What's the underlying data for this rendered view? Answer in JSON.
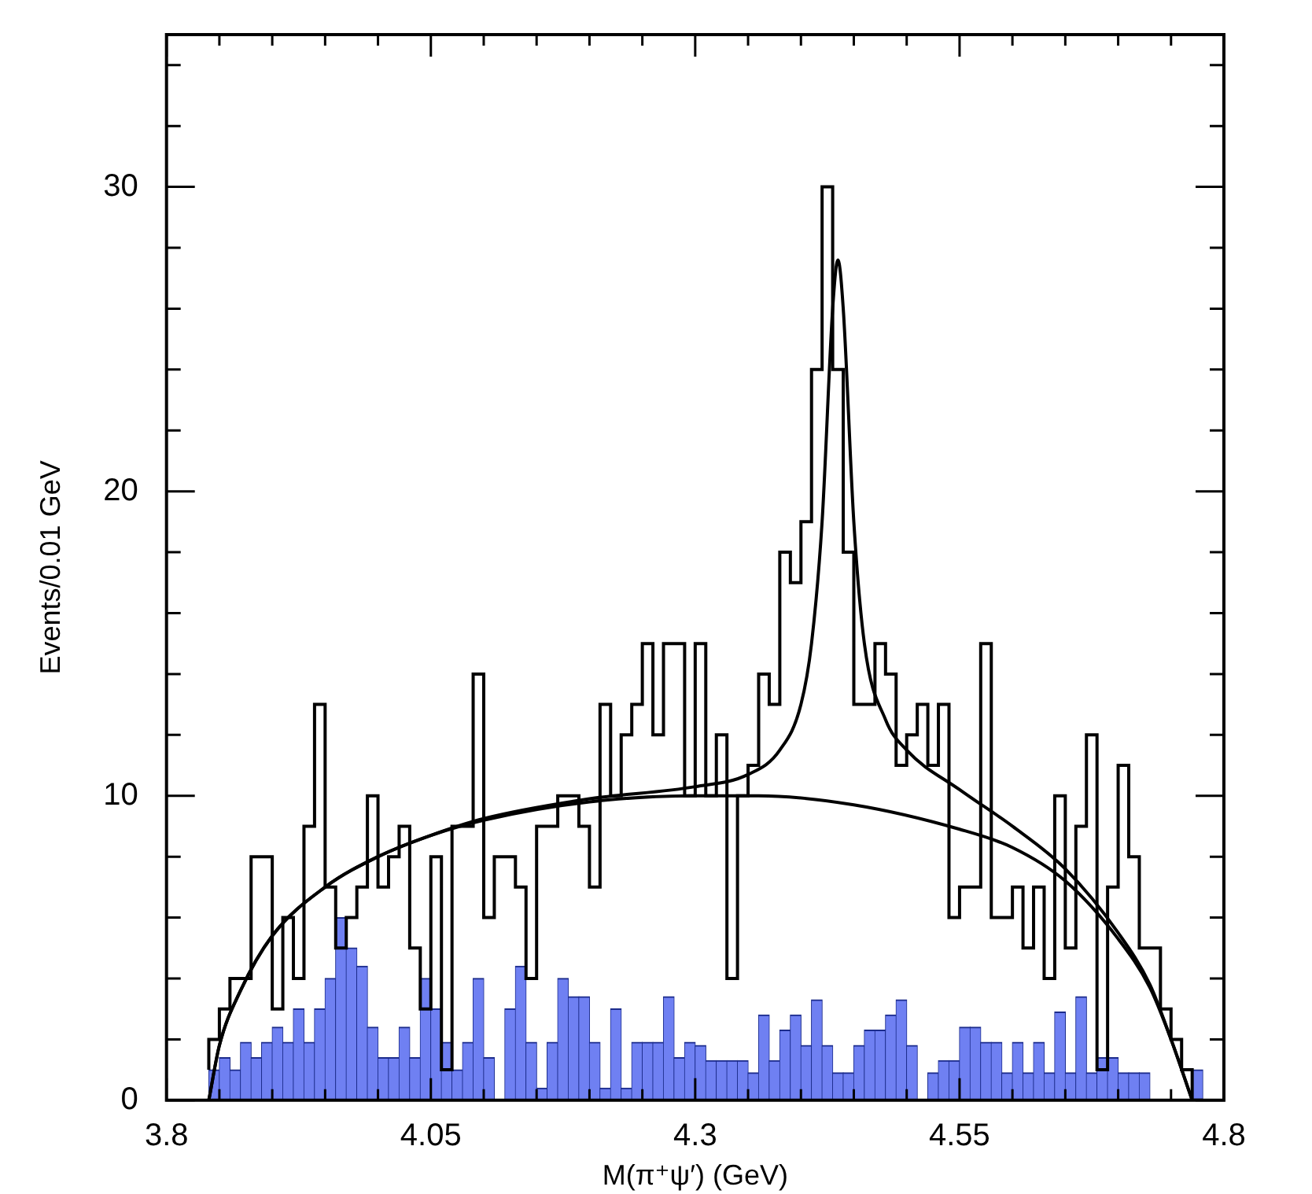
{
  "chart_data": {
    "type": "histogram",
    "xlabel": "M(π⁺ψ′) (GeV)",
    "ylabel": "Events/0.01 GeV",
    "xlim": [
      3.8,
      4.8
    ],
    "ylim": [
      0,
      35
    ],
    "xticks": [
      3.8,
      {
        "value": 3.85,
        "label": null
      },
      {
        "value": 3.9,
        "label": null
      },
      {
        "value": 3.95,
        "label": null
      },
      {
        "value": 4.0,
        "label": null
      },
      4.05,
      {
        "value": 4.1,
        "label": null
      },
      {
        "value": 4.15,
        "label": null
      },
      {
        "value": 4.2,
        "label": null
      },
      {
        "value": 4.25,
        "label": null
      },
      4.3,
      {
        "value": 4.35,
        "label": null
      },
      {
        "value": 4.4,
        "label": null
      },
      {
        "value": 4.45,
        "label": null
      },
      {
        "value": 4.5,
        "label": null
      },
      4.55,
      {
        "value": 4.6,
        "label": null
      },
      {
        "value": 4.65,
        "label": null
      },
      {
        "value": 4.7,
        "label": null
      },
      {
        "value": 4.75,
        "label": null
      },
      4.8
    ],
    "yticks": [
      0,
      {
        "value": 2,
        "label": null
      },
      {
        "value": 4,
        "label": null
      },
      {
        "value": 6,
        "label": null
      },
      {
        "value": 8,
        "label": null
      },
      10,
      {
        "value": 12,
        "label": null
      },
      {
        "value": 14,
        "label": null
      },
      {
        "value": 16,
        "label": null
      },
      {
        "value": 18,
        "label": null
      },
      20,
      {
        "value": 22,
        "label": null
      },
      {
        "value": 24,
        "label": null
      },
      {
        "value": 26,
        "label": null
      },
      {
        "value": 28,
        "label": null
      },
      30,
      {
        "value": 32,
        "label": null
      },
      {
        "value": 34,
        "label": null
      }
    ],
    "bins": [
      3.84,
      3.85,
      3.86,
      3.87,
      3.88,
      3.89,
      3.9,
      3.91,
      3.92,
      3.93,
      3.94,
      3.95,
      3.96,
      3.97,
      3.98,
      3.99,
      4.0,
      4.01,
      4.02,
      4.03,
      4.04,
      4.05,
      4.06,
      4.07,
      4.08,
      4.09,
      4.1,
      4.11,
      4.12,
      4.13,
      4.14,
      4.15,
      4.16,
      4.17,
      4.18,
      4.19,
      4.2,
      4.21,
      4.22,
      4.23,
      4.24,
      4.25,
      4.26,
      4.27,
      4.28,
      4.29,
      4.3,
      4.31,
      4.32,
      4.33,
      4.34,
      4.35,
      4.36,
      4.37,
      4.38,
      4.39,
      4.4,
      4.41,
      4.42,
      4.43,
      4.44,
      4.45,
      4.46,
      4.47,
      4.48,
      4.49,
      4.5,
      4.51,
      4.52,
      4.53,
      4.54,
      4.55,
      4.56,
      4.57,
      4.58,
      4.59,
      4.6,
      4.61,
      4.62,
      4.63,
      4.64,
      4.65,
      4.66,
      4.67,
      4.68,
      4.69,
      4.7,
      4.71,
      4.72,
      4.73,
      4.74,
      4.75,
      4.76,
      4.77,
      4.78
    ],
    "series": [
      {
        "type": "step",
        "color": "#000000",
        "x": [
          3.84,
          3.85,
          3.86,
          3.87,
          3.88,
          3.89,
          3.9,
          3.91,
          3.92,
          3.93,
          3.94,
          3.95,
          3.96,
          3.97,
          3.98,
          3.99,
          4.0,
          4.01,
          4.02,
          4.03,
          4.04,
          4.05,
          4.06,
          4.07,
          4.08,
          4.09,
          4.1,
          4.11,
          4.12,
          4.13,
          4.14,
          4.15,
          4.16,
          4.17,
          4.18,
          4.19,
          4.2,
          4.21,
          4.22,
          4.23,
          4.24,
          4.25,
          4.26,
          4.27,
          4.28,
          4.29,
          4.3,
          4.31,
          4.32,
          4.33,
          4.34,
          4.35,
          4.36,
          4.37,
          4.38,
          4.39,
          4.4,
          4.41,
          4.42,
          4.43,
          4.44,
          4.45,
          4.46,
          4.47,
          4.48,
          4.49,
          4.5,
          4.51,
          4.52,
          4.53,
          4.54,
          4.55,
          4.56,
          4.57,
          4.58,
          4.59,
          4.6,
          4.61,
          4.62,
          4.63,
          4.64,
          4.65,
          4.66,
          4.67,
          4.68,
          4.69,
          4.7,
          4.71,
          4.72,
          4.73,
          4.74,
          4.75,
          4.76,
          4.77,
          4.78
        ],
        "values": [
          1,
          2,
          3,
          4,
          4,
          8,
          8,
          3,
          6,
          4,
          9,
          13,
          7,
          5,
          6,
          7,
          10,
          7,
          8,
          9,
          5,
          3,
          8,
          1,
          9,
          9,
          14,
          6,
          8,
          8,
          7,
          4,
          9,
          9,
          10,
          10,
          9,
          7,
          13,
          10,
          12,
          13,
          15,
          12,
          15,
          15,
          10,
          15,
          10,
          12,
          4,
          10,
          11,
          14,
          13,
          18,
          17,
          19,
          24,
          30,
          24,
          18,
          13,
          13,
          15,
          14,
          11,
          12,
          13,
          11,
          13,
          6,
          7,
          7,
          15,
          6,
          6,
          7,
          5,
          7,
          4,
          10,
          5,
          9,
          12,
          1,
          7,
          11,
          8,
          5,
          5,
          3,
          2,
          1,
          0
        ]
      },
      {
        "color": "#6f80f2",
        "values": [
          1,
          1.4,
          1,
          1.9,
          1.4,
          1.9,
          2.4,
          1.9,
          3,
          1.9,
          3,
          4,
          6,
          5,
          4.4,
          2.4,
          1.4,
          1.4,
          2.4,
          1.4,
          4,
          3,
          1.9,
          1,
          1.9,
          4,
          1.4,
          0,
          3,
          4.4,
          1.9,
          0.4,
          1.9,
          4,
          3.4,
          3.4,
          1.9,
          0.4,
          3,
          0.4,
          1.9,
          1.9,
          1.9,
          3.4,
          1.4,
          1.9,
          1.8,
          1.3,
          1.3,
          1.3,
          1.3,
          0.9,
          2.8,
          1.3,
          2.3,
          2.8,
          1.8,
          3.3,
          1.8,
          0.9,
          0.9,
          1.8,
          2.3,
          2.3,
          2.8,
          3.3,
          1.8,
          0,
          0.9,
          1.3,
          1.3,
          2.4,
          2.4,
          1.9,
          1.9,
          0.9,
          1.9,
          0.9,
          1.9,
          0.9,
          2.9,
          0.9,
          3.4,
          0.9,
          1.4,
          1.4,
          0.9,
          0.9,
          0.9,
          0,
          0,
          0,
          0,
          1
        ]
      },
      {
        "type": "line",
        "color": "#000000",
        "x": [
          3.84,
          3.85,
          3.87,
          3.9,
          3.95,
          4.0,
          4.05,
          4.1,
          4.2,
          4.3,
          4.36,
          4.45,
          4.55,
          4.6,
          4.65,
          4.7,
          4.73,
          4.75,
          4.77
        ],
        "values": [
          0,
          1.8,
          3.6,
          5.4,
          7.0,
          8.0,
          8.7,
          9.2,
          9.8,
          10.0,
          10.0,
          9.7,
          8.9,
          8.3,
          7.2,
          5.3,
          3.7,
          2.0,
          0
        ]
      },
      {
        "type": "line",
        "color": "#000000",
        "x": [
          3.84,
          3.85,
          3.87,
          3.9,
          3.95,
          4.0,
          4.05,
          4.1,
          4.2,
          4.3,
          4.35,
          4.38,
          4.4,
          4.41,
          4.42,
          4.43,
          4.435,
          4.44,
          4.45,
          4.46,
          4.48,
          4.5,
          4.55,
          4.6,
          4.65,
          4.7,
          4.73,
          4.75,
          4.77
        ],
        "values": [
          0,
          1.8,
          3.6,
          5.4,
          7.0,
          8.0,
          8.7,
          9.25,
          9.9,
          10.3,
          10.7,
          11.5,
          13,
          15,
          19,
          26,
          27.6,
          26,
          19,
          15,
          12.5,
          11.5,
          10.2,
          9.0,
          7.6,
          5.5,
          3.8,
          2.0,
          0
        ]
      }
    ]
  }
}
